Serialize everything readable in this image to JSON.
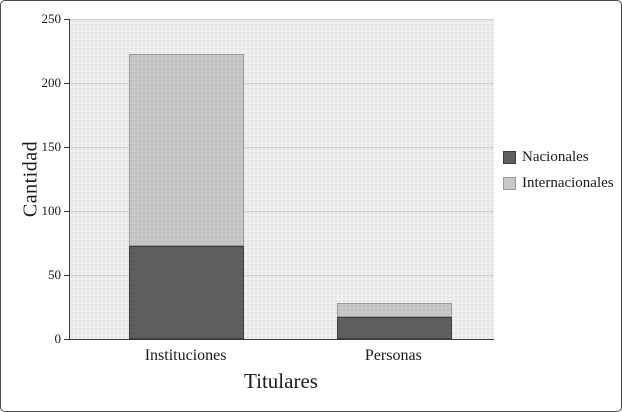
{
  "chart_data": {
    "type": "bar",
    "stacked": true,
    "title": "",
    "categories": [
      "Instituciones",
      "Personas"
    ],
    "series": [
      {
        "name": "Nacionales",
        "color": "#5f5f5f",
        "border": "#3c3c3c",
        "values": [
          73,
          17
        ]
      },
      {
        "name": "Internacionales",
        "color": "#c8c8c8",
        "border": "#9a9a9a",
        "values": [
          150,
          11
        ]
      }
    ],
    "totals": [
      223,
      28
    ],
    "xlabel": "Titulares",
    "ylabel": "Cantidad",
    "ylim": [
      0,
      250
    ],
    "ytick_step": 50,
    "yticks": [
      0,
      50,
      100,
      150,
      200,
      250
    ],
    "grid": "horizontal",
    "legend_position": "right",
    "plot_background": "#efefef"
  }
}
